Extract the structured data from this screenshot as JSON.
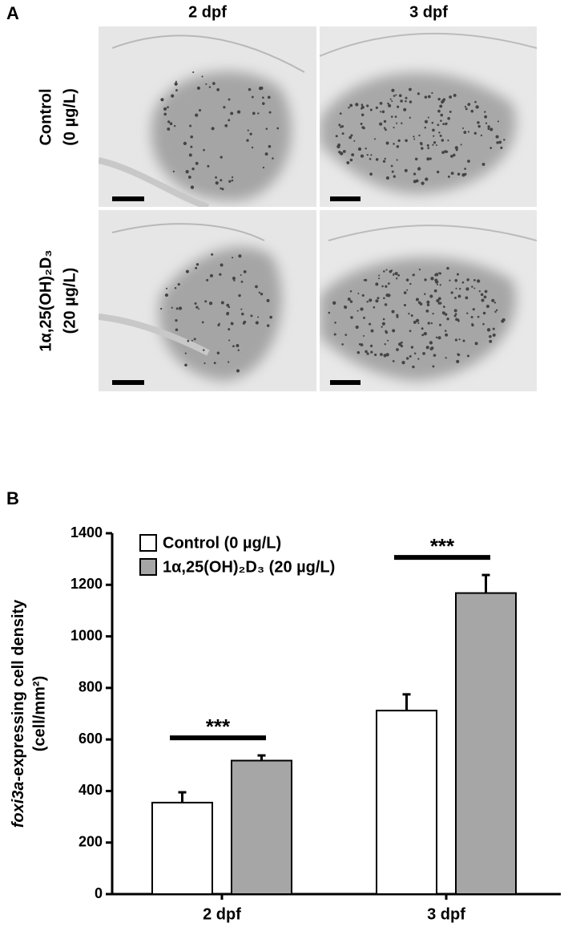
{
  "panel_a": {
    "label": "A",
    "columns": [
      "2 dpf",
      "3 dpf"
    ],
    "rows": [
      [
        "Control",
        "(0 µg/L)"
      ],
      [
        "1α,25(OH)₂D₃",
        "(20 µg/L)"
      ]
    ]
  },
  "chart_data": {
    "type": "bar",
    "panel_label": "B",
    "ylabel": {
      "gene": "foxi3a",
      "text": "-expressing cell density",
      "unit": "(cell/mm²)"
    },
    "categories": [
      "2 dpf",
      "3 dpf"
    ],
    "series": [
      {
        "name": "Control (0 µg/L)",
        "color": "#ffffff",
        "values": [
          355,
          712
        ],
        "errors": [
          40,
          63
        ]
      },
      {
        "name": "1α,25(OH)₂D₃ (20 µg/L)",
        "color": "#a6a6a6",
        "values": [
          518,
          1168
        ],
        "errors": [
          20,
          70
        ]
      }
    ],
    "annotations": [
      {
        "category": 0,
        "text": "***"
      },
      {
        "category": 1,
        "text": "***"
      }
    ],
    "ylim": [
      0,
      1400
    ],
    "yticks": [
      0,
      200,
      400,
      600,
      800,
      1000,
      1200,
      1400
    ],
    "legend": "top-left"
  }
}
